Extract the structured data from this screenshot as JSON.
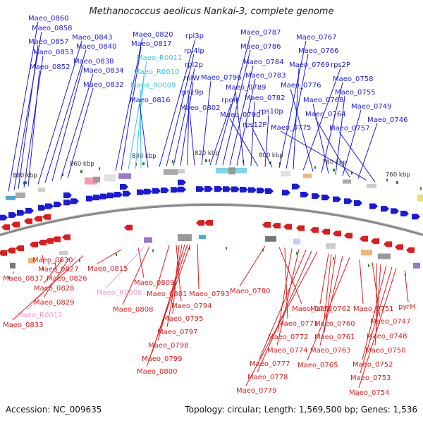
{
  "title": "Methanococcus aeolicus Nankai-3, complete genome",
  "accession": "Accession: NC_009635",
  "summary": "Topology: circular; Length: 1,569,500 bp; Genes: 1,536",
  "colors": {
    "protein_top": "#1a1adb",
    "rna_top": "#38c4e8",
    "protein_bottom": "#dd1c1c",
    "rna_bottom": "#f09acb",
    "ruler": "#888888",
    "tick": "#2a8a2a"
  },
  "ruler_labels": [
    {
      "text": "880 kbp"
    },
    {
      "text": "860 kbp"
    },
    {
      "text": "840 kbp"
    },
    {
      "text": "820 kbp"
    },
    {
      "text": "800 kbp"
    },
    {
      "text": "780 kbp"
    },
    {
      "text": "760 kbp"
    }
  ],
  "top_labels": [
    {
      "text": "Maeo_0860",
      "kind": "protein"
    },
    {
      "text": "Maeo_0858",
      "kind": "protein"
    },
    {
      "text": "Maeo_0857",
      "kind": "protein"
    },
    {
      "text": "Maeo_0853",
      "kind": "protein"
    },
    {
      "text": "Maeo_0852",
      "kind": "protein"
    },
    {
      "text": "Maeo_0843",
      "kind": "protein"
    },
    {
      "text": "Maeo_0840",
      "kind": "protein"
    },
    {
      "text": "Maeo_0838",
      "kind": "protein"
    },
    {
      "text": "Maeo_0834",
      "kind": "protein"
    },
    {
      "text": "Maeo_0832",
      "kind": "protein"
    },
    {
      "text": "Maeo_0820",
      "kind": "protein"
    },
    {
      "text": "Maeo_0817",
      "kind": "protein"
    },
    {
      "text": "Maeo_R0011",
      "kind": "rna"
    },
    {
      "text": "Maeo_R0010",
      "kind": "rna"
    },
    {
      "text": "Maeo_R0009",
      "kind": "rna"
    },
    {
      "text": "Maeo_0816",
      "kind": "protein"
    },
    {
      "text": "rpl3p",
      "kind": "protein"
    },
    {
      "text": "rpl4lp",
      "kind": "protein"
    },
    {
      "text": "rpl2p",
      "kind": "protein"
    },
    {
      "text": "rplW",
      "kind": "protein"
    },
    {
      "text": "rps19p",
      "kind": "protein"
    },
    {
      "text": "Maeo_0802",
      "kind": "protein"
    },
    {
      "text": "Maeo_0796",
      "kind": "protein"
    },
    {
      "text": "rpoH",
      "kind": "protein"
    },
    {
      "text": "Maeo_0787",
      "kind": "protein"
    },
    {
      "text": "Maeo_0786",
      "kind": "protein"
    },
    {
      "text": "Maeo_0784",
      "kind": "protein"
    },
    {
      "text": "Maeo_0783",
      "kind": "protein"
    },
    {
      "text": "Maeo_0789",
      "kind": "protein"
    },
    {
      "text": "Maeo_0782",
      "kind": "protein"
    },
    {
      "text": "Maeo_0790",
      "kind": "protein"
    },
    {
      "text": "rps10p",
      "kind": "protein"
    },
    {
      "text": "rps12P",
      "kind": "protein"
    },
    {
      "text": "Maeo_0767",
      "kind": "protein"
    },
    {
      "text": "Maeo_0766",
      "kind": "protein"
    },
    {
      "text": "Maeo_0769",
      "kind": "protein"
    },
    {
      "text": "rps2P",
      "kind": "protein"
    },
    {
      "text": "Maeo_0776",
      "kind": "protein"
    },
    {
      "text": "Maeo_0758",
      "kind": "protein"
    },
    {
      "text": "Maeo_0768",
      "kind": "protein"
    },
    {
      "text": "Maeo_0755",
      "kind": "protein"
    },
    {
      "text": "Maeo_0749",
      "kind": "protein"
    },
    {
      "text": "Maeo_0764",
      "kind": "protein"
    },
    {
      "text": "Maeo_0746",
      "kind": "protein"
    },
    {
      "text": "Maeo_0775",
      "kind": "protein"
    },
    {
      "text": "Maeo_0757",
      "kind": "protein"
    }
  ],
  "bottom_labels": [
    {
      "text": "Maeo_0830",
      "kind": "protein"
    },
    {
      "text": "Maeo_0837",
      "kind": "protein"
    },
    {
      "text": "Maeo_0827",
      "kind": "protein"
    },
    {
      "text": "Maeo_0826",
      "kind": "protein"
    },
    {
      "text": "Maeo_0828",
      "kind": "protein"
    },
    {
      "text": "Maeo_0829",
      "kind": "protein"
    },
    {
      "text": "Maeo_R0012",
      "kind": "rna"
    },
    {
      "text": "Maeo_0833",
      "kind": "protein"
    },
    {
      "text": "Maeo_0815",
      "kind": "protein"
    },
    {
      "text": "Maeo_0809",
      "kind": "protein"
    },
    {
      "text": "Maeo_R0008",
      "kind": "rna"
    },
    {
      "text": "Maeo_0808",
      "kind": "protein"
    },
    {
      "text": "Maeo_0801",
      "kind": "protein"
    },
    {
      "text": "Maeo_0793",
      "kind": "protein"
    },
    {
      "text": "Maeo_0794",
      "kind": "protein"
    },
    {
      "text": "Maeo_0795",
      "kind": "protein"
    },
    {
      "text": "Maeo_0797",
      "kind": "protein"
    },
    {
      "text": "Maeo_0798",
      "kind": "protein"
    },
    {
      "text": "Maeo_0799",
      "kind": "protein"
    },
    {
      "text": "Maeo_0800",
      "kind": "protein"
    },
    {
      "text": "Maeo_0780",
      "kind": "protein"
    },
    {
      "text": "Maeo_0773",
      "kind": "protein"
    },
    {
      "text": "Maeo_0771",
      "kind": "protein"
    },
    {
      "text": "Maeo_0772",
      "kind": "protein"
    },
    {
      "text": "Maeo_0774",
      "kind": "protein"
    },
    {
      "text": "Maeo_0777",
      "kind": "protein"
    },
    {
      "text": "Maeo_0778",
      "kind": "protein"
    },
    {
      "text": "Maeo_0779",
      "kind": "protein"
    },
    {
      "text": "Maeo_0762",
      "kind": "protein"
    },
    {
      "text": "Maeo_0760",
      "kind": "protein"
    },
    {
      "text": "Maeo_0761",
      "kind": "protein"
    },
    {
      "text": "Maeo_0763",
      "kind": "protein"
    },
    {
      "text": "Maeo_0765",
      "kind": "protein"
    },
    {
      "text": "Maeo_0751",
      "kind": "protein"
    },
    {
      "text": "Maeo_0747",
      "kind": "protein"
    },
    {
      "text": "Maeo_0748",
      "kind": "protein"
    },
    {
      "text": "Maeo_0750",
      "kind": "protein"
    },
    {
      "text": "Maeo_0752",
      "kind": "protein"
    },
    {
      "text": "Maeo_0753",
      "kind": "protein"
    },
    {
      "text": "Maeo_0754",
      "kind": "protein"
    },
    {
      "text": "pyrH",
      "kind": "protein"
    }
  ]
}
